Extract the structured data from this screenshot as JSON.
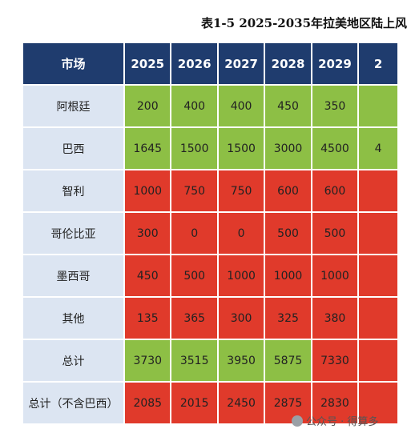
{
  "title": "表1-5 2025-2035年拉美地区陆上风",
  "colors": {
    "header_bg": "#1f3c6e",
    "market_bg": "#dce5f2",
    "green": "#8dbf45",
    "red": "#e03a2b"
  },
  "table": {
    "header_market": "市场",
    "years": [
      "2025",
      "2026",
      "2027",
      "2028",
      "2029",
      "2"
    ],
    "rows": [
      {
        "market": "阿根廷",
        "cells": [
          {
            "value": "200",
            "status": "green"
          },
          {
            "value": "400",
            "status": "green"
          },
          {
            "value": "400",
            "status": "green"
          },
          {
            "value": "450",
            "status": "green"
          },
          {
            "value": "350",
            "status": "green"
          },
          {
            "value": "",
            "status": "green"
          }
        ]
      },
      {
        "market": "巴西",
        "cells": [
          {
            "value": "1645",
            "status": "green"
          },
          {
            "value": "1500",
            "status": "green"
          },
          {
            "value": "1500",
            "status": "green"
          },
          {
            "value": "3000",
            "status": "green"
          },
          {
            "value": "4500",
            "status": "green"
          },
          {
            "value": "4",
            "status": "green"
          }
        ]
      },
      {
        "market": "智利",
        "cells": [
          {
            "value": "1000",
            "status": "red"
          },
          {
            "value": "750",
            "status": "red"
          },
          {
            "value": "750",
            "status": "red"
          },
          {
            "value": "600",
            "status": "red"
          },
          {
            "value": "600",
            "status": "red"
          },
          {
            "value": "",
            "status": "red"
          }
        ]
      },
      {
        "market": "哥伦比亚",
        "cells": [
          {
            "value": "300",
            "status": "red"
          },
          {
            "value": "0",
            "status": "red"
          },
          {
            "value": "0",
            "status": "red"
          },
          {
            "value": "500",
            "status": "red"
          },
          {
            "value": "500",
            "status": "red"
          },
          {
            "value": "",
            "status": "red"
          }
        ]
      },
      {
        "market": "墨西哥",
        "cells": [
          {
            "value": "450",
            "status": "red"
          },
          {
            "value": "500",
            "status": "red"
          },
          {
            "value": "1000",
            "status": "red"
          },
          {
            "value": "1000",
            "status": "red"
          },
          {
            "value": "1000",
            "status": "red"
          },
          {
            "value": "",
            "status": "red"
          }
        ]
      },
      {
        "market": "其他",
        "cells": [
          {
            "value": "135",
            "status": "red"
          },
          {
            "value": "365",
            "status": "red"
          },
          {
            "value": "300",
            "status": "red"
          },
          {
            "value": "325",
            "status": "red"
          },
          {
            "value": "380",
            "status": "red"
          },
          {
            "value": "",
            "status": "red"
          }
        ]
      },
      {
        "market": "总计",
        "cells": [
          {
            "value": "3730",
            "status": "green"
          },
          {
            "value": "3515",
            "status": "green"
          },
          {
            "value": "3950",
            "status": "green"
          },
          {
            "value": "5875",
            "status": "green"
          },
          {
            "value": "7330",
            "status": "red"
          },
          {
            "value": "",
            "status": "red"
          }
        ]
      },
      {
        "market": "总计（不含巴西）",
        "cells": [
          {
            "value": "2085",
            "status": "red"
          },
          {
            "value": "2015",
            "status": "red"
          },
          {
            "value": "2450",
            "status": "red"
          },
          {
            "value": "2875",
            "status": "red"
          },
          {
            "value": "2830",
            "status": "red"
          },
          {
            "value": "",
            "status": "red"
          }
        ]
      }
    ]
  },
  "watermark": {
    "text": "公众号 · 得算多",
    "icon": "wechat-icon"
  }
}
